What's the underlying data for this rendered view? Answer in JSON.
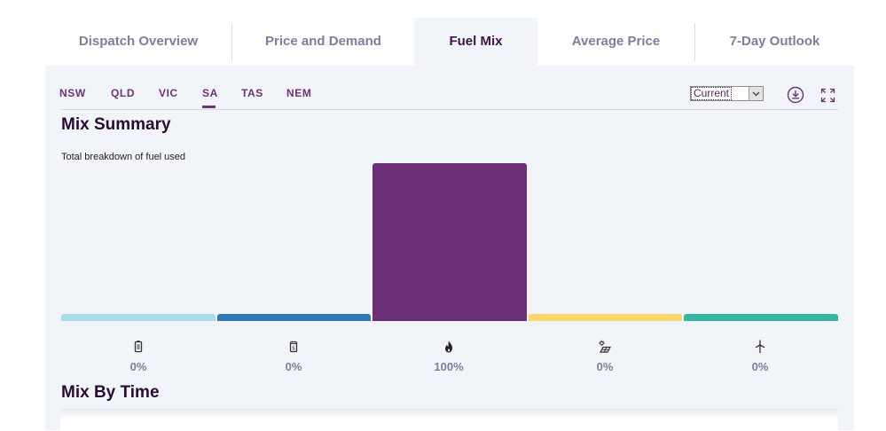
{
  "tabs": [
    {
      "label": "Dispatch Overview"
    },
    {
      "label": "Price and Demand"
    },
    {
      "label": "Fuel Mix"
    },
    {
      "label": "Average Price"
    },
    {
      "label": "7-Day Outlook"
    }
  ],
  "regions": [
    {
      "label": "NSW"
    },
    {
      "label": "QLD"
    },
    {
      "label": "VIC"
    },
    {
      "label": "SA"
    },
    {
      "label": "TAS"
    },
    {
      "label": "NEM"
    }
  ],
  "active_region": "SA",
  "period_select": {
    "value": "Current"
  },
  "icons": {
    "download": "download-icon",
    "expand": "expand-icon"
  },
  "mix_summary": {
    "title": "Mix Summary",
    "subtitle": "Total breakdown of fuel used"
  },
  "mix_by_time": {
    "title": "Mix By Time"
  },
  "chart_data": {
    "type": "bar",
    "title": "Mix Summary",
    "subtitle": "Total breakdown of fuel used",
    "categories": [
      "battery",
      "liquid fuel",
      "gas",
      "solar",
      "wind"
    ],
    "values": [
      0,
      0,
      100,
      0,
      0
    ],
    "labels": [
      "0%",
      "0%",
      "100%",
      "0%",
      "0%"
    ],
    "colors": [
      "#a9dcea",
      "#3079b7",
      "#6b2f75",
      "#fbd66a",
      "#36b7a6"
    ],
    "icons": [
      "battery-icon",
      "fuel-canister-icon",
      "flame-icon",
      "solar-icon",
      "wind-turbine-icon"
    ],
    "ylim": [
      0,
      100
    ]
  }
}
